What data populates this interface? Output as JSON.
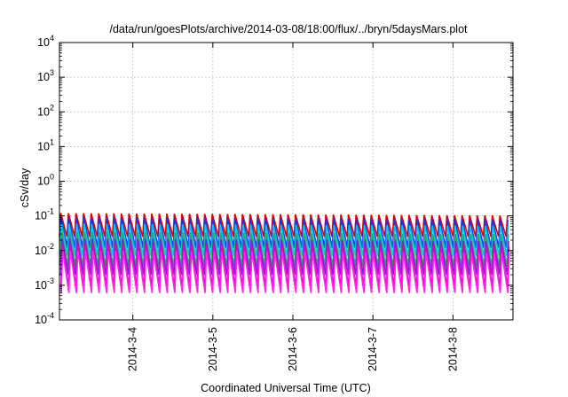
{
  "chart_data": {
    "type": "line",
    "title": "/data/run/goesPlots/archive/2014-03-08/18:00/flux/../bryn/5daysMars.plot",
    "xlabel": "Coordinated Universal Time (UTC)",
    "ylabel": "cSv/day",
    "yscale": "log",
    "ylim": [
      0.0001,
      10000
    ],
    "xlim": [
      "2014-03-03 02:00",
      "2014-03-08 18:00"
    ],
    "y_ticks": [
      {
        "base": "10",
        "exp": "-4"
      },
      {
        "base": "10",
        "exp": "-3"
      },
      {
        "base": "10",
        "exp": "-2"
      },
      {
        "base": "10",
        "exp": "-1"
      },
      {
        "base": "10",
        "exp": "0"
      },
      {
        "base": "10",
        "exp": "1"
      },
      {
        "base": "10",
        "exp": "2"
      },
      {
        "base": "10",
        "exp": "3"
      },
      {
        "base": "10",
        "exp": "4"
      }
    ],
    "x_ticks": [
      "2014-3-4",
      "2014-3-5",
      "2014-3-6",
      "2014-3-7",
      "2014-3-8"
    ],
    "grid": true,
    "periodic_signal": {
      "cycles": 60,
      "period_hours": 2.27
    },
    "series": [
      {
        "color": "#dd0000",
        "peak": 0.12,
        "trough": 0.025
      },
      {
        "color": "#1f33e6",
        "peak": 0.09,
        "trough": 0.012
      },
      {
        "color": "#00c8e8",
        "peak": 0.06,
        "trough": 0.007
      },
      {
        "color": "#2aa86a",
        "peak": 0.035,
        "trough": 0.0035
      },
      {
        "color": "#7a22d8",
        "peak": 0.022,
        "trough": 0.002
      },
      {
        "color": "#e800c8",
        "peak": 0.015,
        "trough": 0.0009
      },
      {
        "color": "#ff22ee",
        "peak": 0.01,
        "trough": 0.0006
      }
    ]
  }
}
